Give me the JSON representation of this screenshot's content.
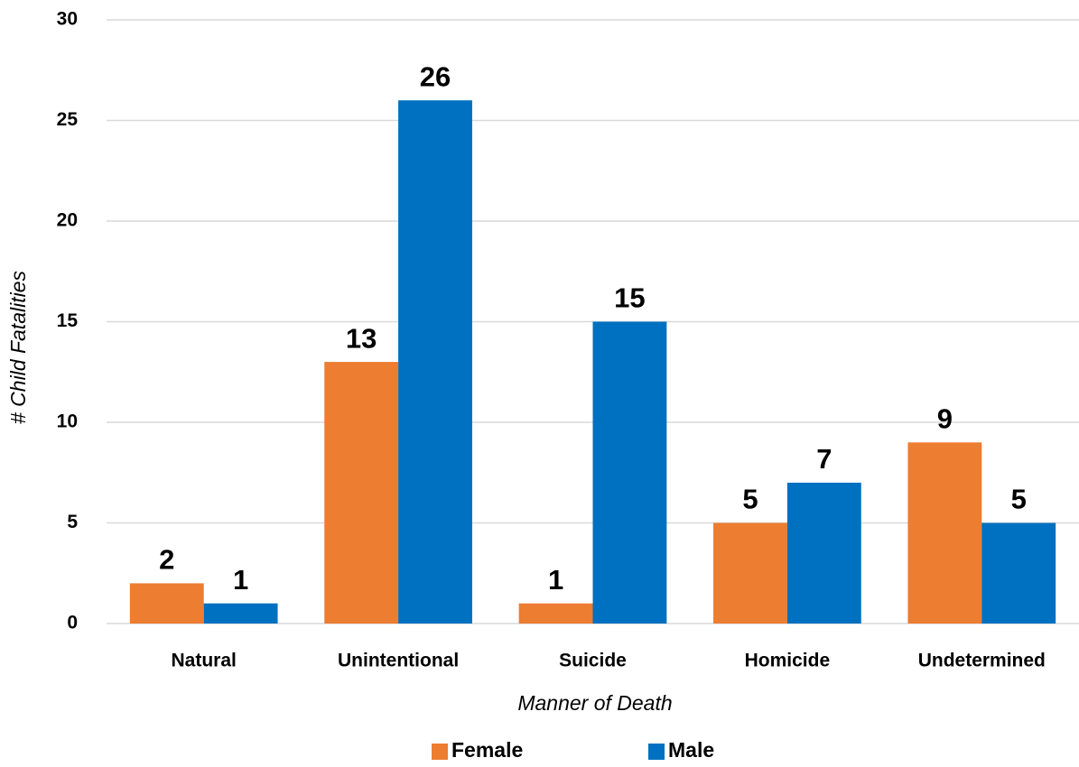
{
  "chart_data": {
    "type": "bar",
    "x_label": "Manner of Death",
    "y_label": "# Child Fatalities",
    "categories": [
      "Natural",
      "Unintentional",
      "Suicide",
      "Homicide",
      "Undetermined"
    ],
    "series": [
      {
        "name": "Female",
        "color": "#ed7d31",
        "values": [
          2,
          13,
          1,
          5,
          9
        ]
      },
      {
        "name": "Male",
        "color": "#0070c0",
        "values": [
          1,
          26,
          15,
          7,
          5
        ]
      }
    ],
    "ylim": [
      0,
      30
    ],
    "yticks": [
      0,
      5,
      10,
      15,
      20,
      25,
      30
    ],
    "grid": true,
    "legend": "bottom"
  }
}
